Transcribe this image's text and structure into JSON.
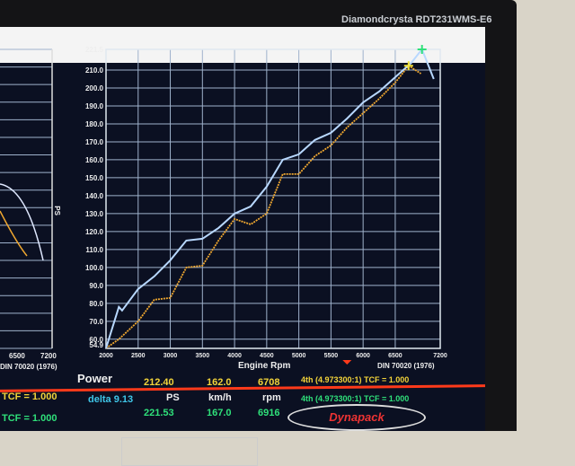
{
  "monitor": {
    "brand": "Diamondcrysta RDT231WMS-E6"
  },
  "chart_data": {
    "type": "line",
    "title": "Power",
    "xlabel": "Engine Rpm",
    "ylabel": "PS",
    "note": "DIN 70020 (1976)",
    "xlim": [
      2000,
      7200
    ],
    "ylim": [
      54.9,
      221.5
    ],
    "grid": true,
    "x_ticks": [
      "2000",
      "2500",
      "3000",
      "3500",
      "4000",
      "4500",
      "5000",
      "5500",
      "6000",
      "6500",
      "7200"
    ],
    "y_ticks": [
      "54.9",
      "60.0",
      "70.0",
      "80.0",
      "90.0",
      "100.0",
      "110.0",
      "120.0",
      "130.0",
      "140.0",
      "150.0",
      "160.0",
      "170.0",
      "180.0",
      "190.0",
      "200.0",
      "210.0",
      "221.5"
    ],
    "series": [
      {
        "color": "#f0a830",
        "x": [
          2000,
          2200,
          2500,
          2750,
          3000,
          3250,
          3500,
          3750,
          4000,
          4250,
          4500,
          4750,
          5000,
          5250,
          5500,
          5750,
          6000,
          6250,
          6500,
          6708,
          6900
        ],
        "y": [
          55,
          60,
          70,
          82,
          83,
          100,
          101,
          115,
          127,
          124,
          130,
          152,
          152,
          162,
          168,
          178,
          186,
          194,
          203,
          212.4,
          208
        ]
      },
      {
        "color": "#b8d8ff",
        "x": [
          2000,
          2200,
          2250,
          2500,
          2750,
          3000,
          3250,
          3500,
          3750,
          4000,
          4250,
          4500,
          4750,
          5000,
          5250,
          5500,
          5750,
          6000,
          6250,
          6500,
          6750,
          6916,
          7100
        ],
        "y": [
          55,
          78,
          76,
          88,
          95,
          104,
          115,
          116,
          122,
          130,
          134,
          145,
          160,
          163,
          171,
          175,
          183,
          192,
          198,
          206,
          214,
          221.53,
          205
        ]
      }
    ]
  },
  "left_panel": {
    "x_ticks": [
      "6500",
      "7200"
    ],
    "note": "DIN 70020 (1976)",
    "tcf1": "TCF = 1.000",
    "tcf2": "TCF = 1.000"
  },
  "readout": {
    "run1": {
      "power": "212.40",
      "speed": "162.0",
      "rpm": "6708",
      "gear": "4th (4.973300:1) TCF = 1.000"
    },
    "run2": {
      "power": "221.53",
      "speed": "167.0",
      "rpm": "6916",
      "gear": "4th (4.973300:1) TCF = 1.000"
    },
    "delta": "delta 9.13",
    "power_unit": "PS",
    "speed_unit": "km/h",
    "rpm_unit": "rpm"
  },
  "logo": "Dynapack"
}
